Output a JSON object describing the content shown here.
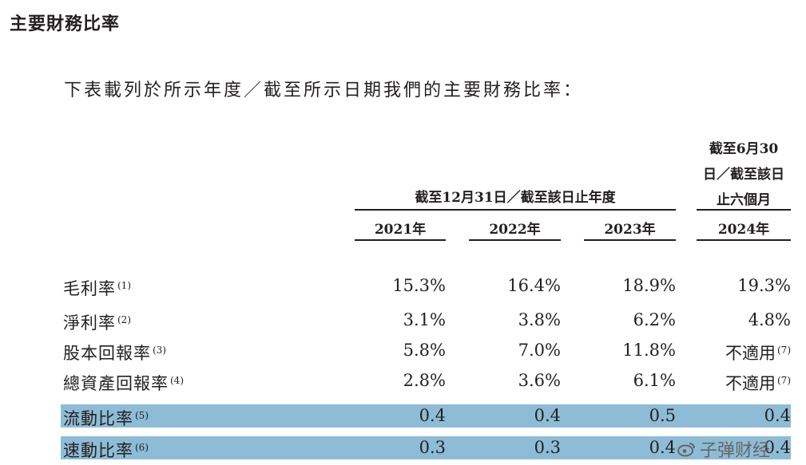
{
  "title": "主要財務比率",
  "intro": "下表載列於所示年度／截至所示日期我們的主要財務比率：",
  "header": {
    "group_label": "截至12月31日／截至該日止年度",
    "interim_lines": [
      "截至6月30",
      "日／截至該日",
      "止六個月"
    ],
    "years": [
      "2021年",
      "2022年",
      "2023年",
      "2024年"
    ]
  },
  "rows": [
    {
      "label": "毛利率",
      "note": "(1)",
      "values": [
        {
          "v": "15.3%",
          "n": ""
        },
        {
          "v": "16.4%",
          "n": ""
        },
        {
          "v": "18.9%",
          "n": ""
        },
        {
          "v": "19.3%",
          "n": ""
        }
      ]
    },
    {
      "label": "淨利率",
      "note": "(2)",
      "values": [
        {
          "v": "3.1%",
          "n": ""
        },
        {
          "v": "3.8%",
          "n": ""
        },
        {
          "v": "6.2%",
          "n": ""
        },
        {
          "v": "4.8%",
          "n": ""
        }
      ]
    },
    {
      "label": "股本回報率",
      "note": "(3)",
      "values": [
        {
          "v": "5.8%",
          "n": ""
        },
        {
          "v": "7.0%",
          "n": ""
        },
        {
          "v": "11.8%",
          "n": ""
        },
        {
          "v": "不適用",
          "n": "(7)"
        }
      ]
    },
    {
      "label": "總資產回報率",
      "note": "(4)",
      "values": [
        {
          "v": "2.8%",
          "n": ""
        },
        {
          "v": "3.6%",
          "n": ""
        },
        {
          "v": "6.1%",
          "n": ""
        },
        {
          "v": "不適用",
          "n": "(7)"
        }
      ]
    },
    {
      "label": "流動比率",
      "note": "(5)",
      "values": [
        {
          "v": "0.4",
          "n": ""
        },
        {
          "v": "0.4",
          "n": ""
        },
        {
          "v": "0.5",
          "n": ""
        },
        {
          "v": "0.4",
          "n": ""
        }
      ]
    },
    {
      "label": "速動比率",
      "note": "(6)",
      "values": [
        {
          "v": "0.3",
          "n": ""
        },
        {
          "v": "0.3",
          "n": ""
        },
        {
          "v": "0.4",
          "n": ""
        },
        {
          "v": "0.4",
          "n": ""
        }
      ]
    }
  ],
  "highlight_color": "#8ebcd6",
  "watermark": {
    "icon": "weibo-icon",
    "text": "子弹财经"
  }
}
